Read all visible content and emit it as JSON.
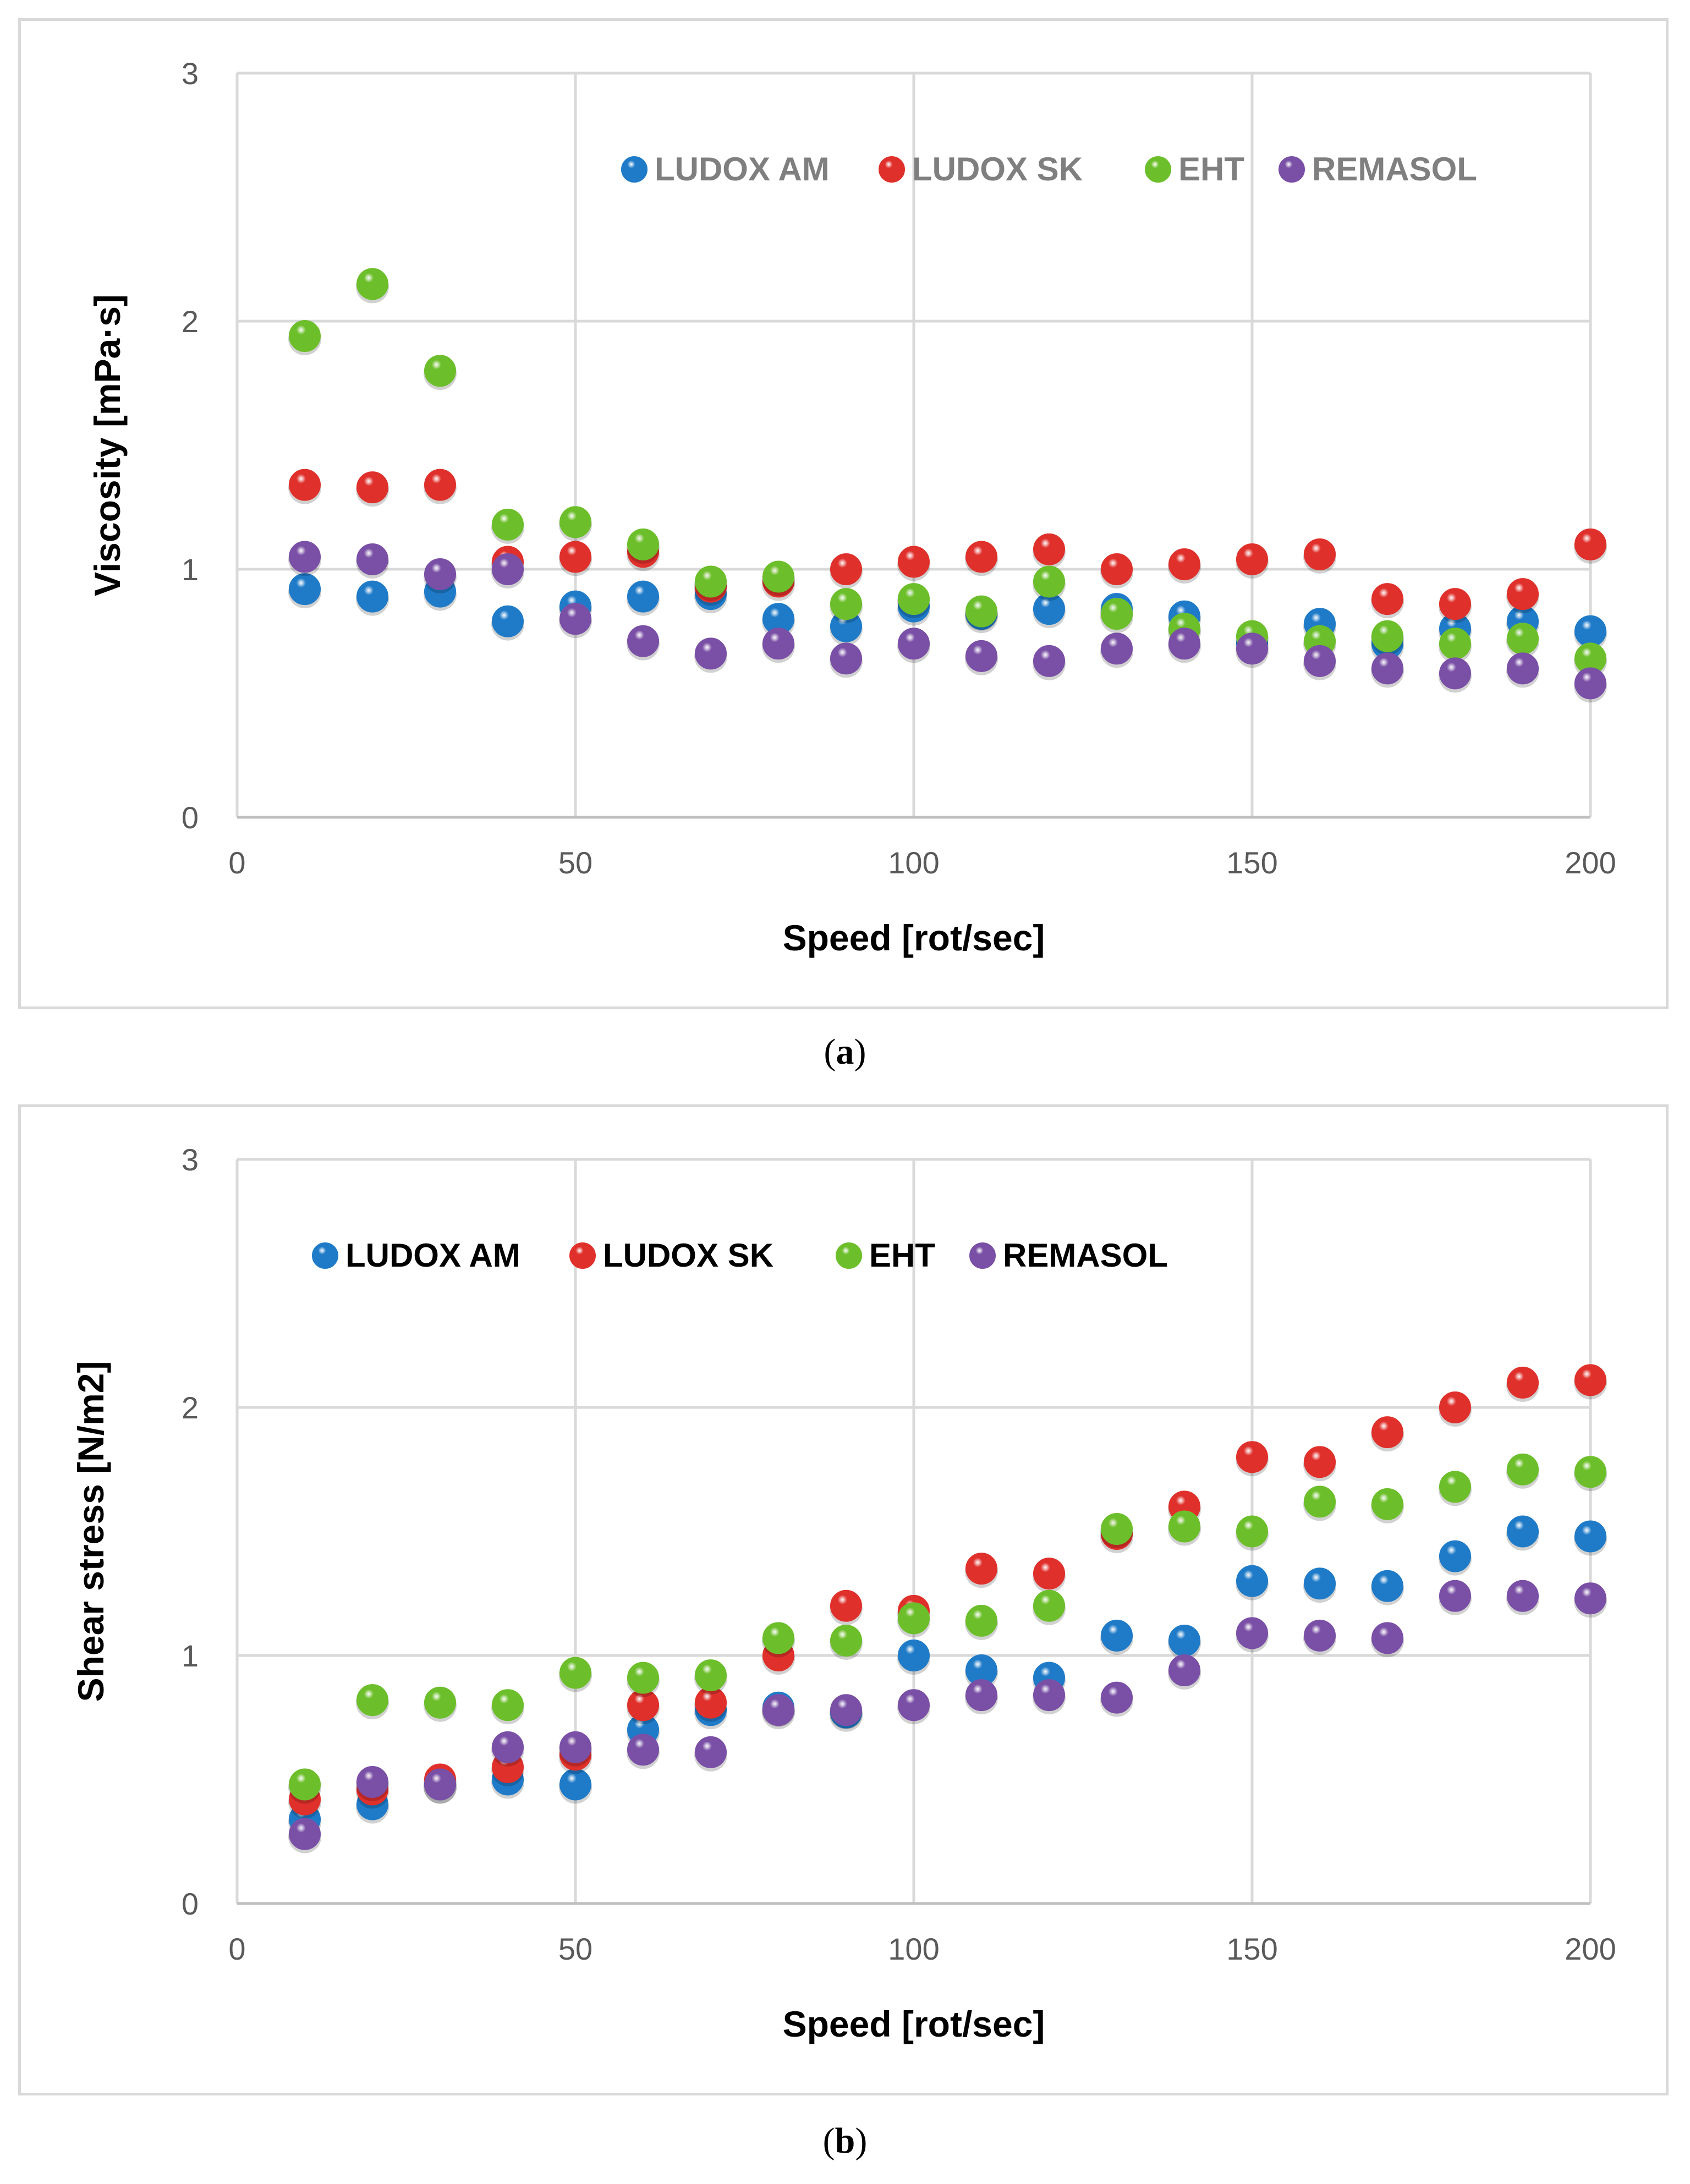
{
  "chart_data": [
    {
      "panel": "a",
      "type": "scatter",
      "caption": "a",
      "xlabel": "Speed [rot/sec]",
      "ylabel": "Viscosity [mPa·s]",
      "xlim": [
        0,
        200
      ],
      "ylim": [
        0,
        3
      ],
      "xticks": [
        0,
        50,
        100,
        150,
        200
      ],
      "yticks": [
        0,
        1,
        2,
        3
      ],
      "grid": true,
      "legend": "top",
      "legend_color": "#7f7f7f",
      "x": [
        10,
        20,
        30,
        40,
        50,
        60,
        70,
        80,
        90,
        100,
        110,
        120,
        130,
        140,
        150,
        160,
        170,
        180,
        190,
        200
      ],
      "series": [
        {
          "name": "LUDOX AM",
          "color": "#1f7bc8",
          "values": [
            0.92,
            0.89,
            0.91,
            0.79,
            0.85,
            0.89,
            0.9,
            0.8,
            0.77,
            0.85,
            0.82,
            0.84,
            0.84,
            0.81,
            0.7,
            0.78,
            0.7,
            0.76,
            0.79,
            0.75
          ]
        },
        {
          "name": "LUDOX SK",
          "color": "#e0302b",
          "values": [
            1.34,
            1.33,
            1.34,
            1.03,
            1.05,
            1.07,
            0.93,
            0.95,
            1.0,
            1.03,
            1.05,
            1.08,
            1.0,
            1.02,
            1.04,
            1.06,
            0.88,
            0.86,
            0.9,
            1.1
          ]
        },
        {
          "name": "EHT",
          "color": "#6cbf2a",
          "values": [
            1.94,
            2.15,
            1.8,
            1.18,
            1.19,
            1.1,
            0.95,
            0.97,
            0.86,
            0.88,
            0.83,
            0.95,
            0.82,
            0.76,
            0.73,
            0.71,
            0.73,
            0.7,
            0.72,
            0.64
          ]
        },
        {
          "name": "REMASOL",
          "color": "#7a4fa6",
          "values": [
            1.05,
            1.04,
            0.98,
            1.0,
            0.8,
            0.71,
            0.66,
            0.7,
            0.64,
            0.7,
            0.65,
            0.63,
            0.68,
            0.7,
            0.68,
            0.63,
            0.6,
            0.58,
            0.6,
            0.54
          ]
        }
      ]
    },
    {
      "panel": "b",
      "type": "scatter",
      "caption": "b",
      "xlabel": "Speed [rot/sec]",
      "ylabel": "Shear stress [N/m2]",
      "xlim": [
        0,
        200
      ],
      "ylim": [
        0,
        3
      ],
      "xticks": [
        0,
        50,
        100,
        150,
        200
      ],
      "yticks": [
        0,
        1,
        2,
        3
      ],
      "grid": true,
      "legend": "top-left",
      "legend_color": "#000000",
      "x": [
        10,
        20,
        30,
        40,
        50,
        60,
        70,
        80,
        90,
        100,
        110,
        120,
        130,
        140,
        150,
        160,
        170,
        180,
        190,
        200
      ],
      "series": [
        {
          "name": "LUDOX AM",
          "color": "#1f7bc8",
          "values": [
            0.34,
            0.4,
            0.48,
            0.5,
            0.48,
            0.7,
            0.78,
            0.79,
            0.77,
            1.0,
            0.94,
            0.91,
            1.08,
            1.06,
            1.3,
            1.29,
            1.28,
            1.4,
            1.5,
            1.48
          ]
        },
        {
          "name": "LUDOX SK",
          "color": "#e0302b",
          "values": [
            0.42,
            0.46,
            0.5,
            0.55,
            0.6,
            0.8,
            0.81,
            1.0,
            1.2,
            1.18,
            1.35,
            1.33,
            1.49,
            1.6,
            1.8,
            1.78,
            1.9,
            2.0,
            2.1,
            2.11
          ]
        },
        {
          "name": "EHT",
          "color": "#6cbf2a",
          "values": [
            0.48,
            0.82,
            0.81,
            0.8,
            0.93,
            0.91,
            0.92,
            1.07,
            1.06,
            1.15,
            1.14,
            1.2,
            1.51,
            1.52,
            1.5,
            1.62,
            1.61,
            1.68,
            1.75,
            1.74
          ]
        },
        {
          "name": "REMASOL",
          "color": "#7a4fa6",
          "values": [
            0.28,
            0.49,
            0.48,
            0.63,
            0.63,
            0.62,
            0.61,
            0.78,
            0.78,
            0.8,
            0.84,
            0.84,
            0.83,
            0.94,
            1.09,
            1.08,
            1.07,
            1.24,
            1.24,
            1.23
          ]
        }
      ]
    }
  ]
}
